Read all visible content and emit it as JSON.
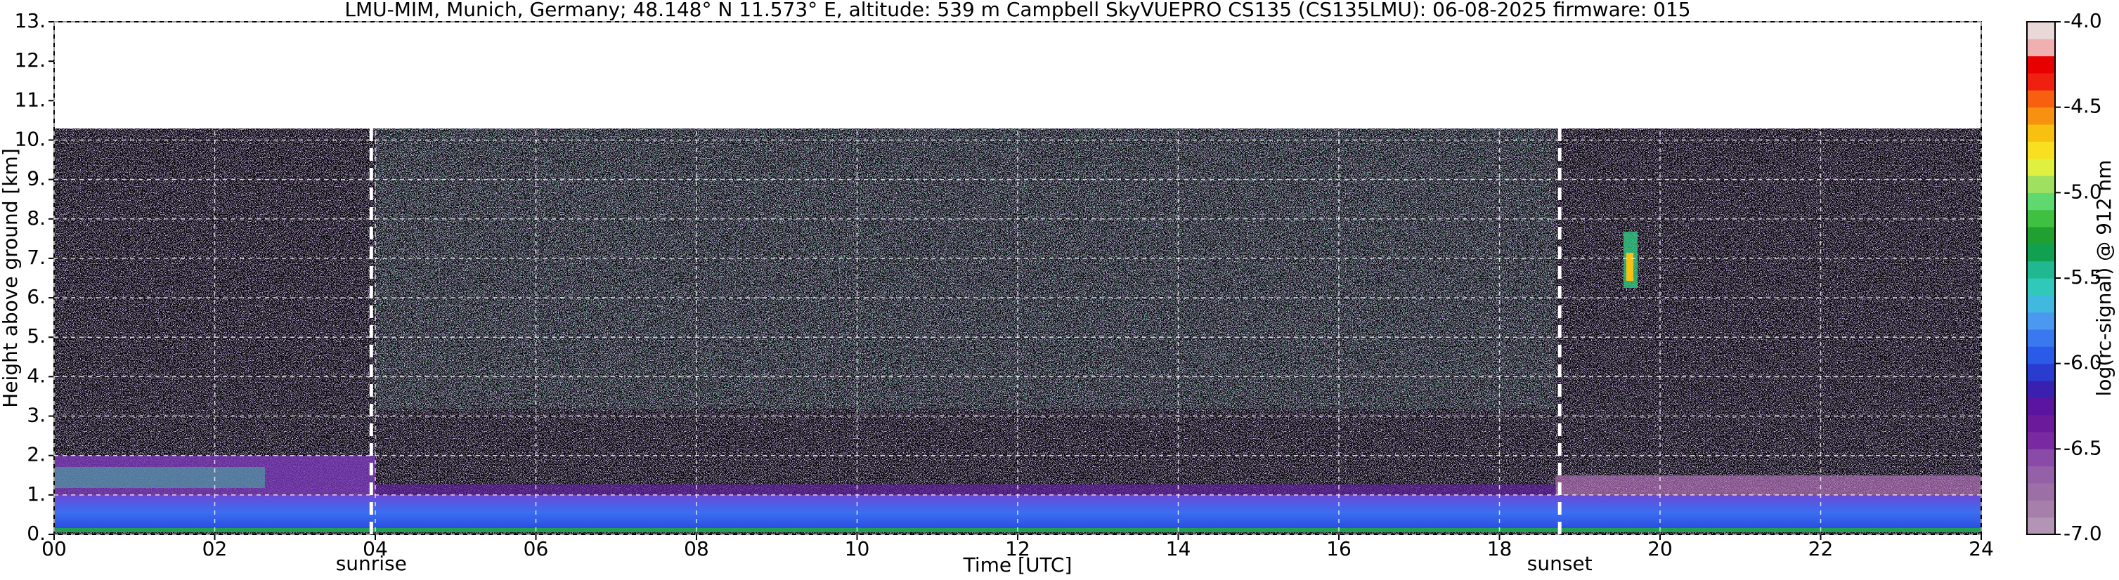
{
  "chart_data": {
    "type": "heatmap",
    "title": "LMU-MIM, Munich, Germany; 48.148° N 11.573° E, altitude: 539 m    Campbell SkyVUEPRO CS135 (CS135LMU): 06-08-2025    firmware: 015",
    "xlabel": "Time [UTC]",
    "ylabel": "Height above ground [km]",
    "xlim": [
      0,
      24
    ],
    "xticks": [
      {
        "value": 0,
        "label": "00"
      },
      {
        "value": 2,
        "label": "02"
      },
      {
        "value": 4,
        "label": "04"
      },
      {
        "value": 6,
        "label": "06"
      },
      {
        "value": 8,
        "label": "08"
      },
      10,
      12,
      14,
      16,
      18,
      20,
      22,
      24
    ],
    "ylim": [
      0,
      13
    ],
    "yticks": [
      {
        "value": 0,
        "label": "0."
      },
      {
        "value": 1,
        "label": "1."
      },
      {
        "value": 2,
        "label": "2."
      },
      {
        "value": 3,
        "label": "3."
      },
      {
        "value": 4,
        "label": "4."
      },
      {
        "value": 5,
        "label": "5."
      },
      {
        "value": 6,
        "label": "6."
      },
      {
        "value": 7,
        "label": "7."
      },
      {
        "value": 8,
        "label": "8."
      },
      {
        "value": 9,
        "label": "9."
      },
      {
        "value": 10,
        "label": "10."
      },
      {
        "value": 11,
        "label": "11."
      },
      {
        "value": 12,
        "label": "12."
      },
      {
        "value": 13,
        "label": "13."
      }
    ],
    "grid": true,
    "annotations": [
      {
        "label": "sunrise",
        "x": 3.95
      },
      {
        "label": "sunset",
        "x": 18.75
      }
    ],
    "colorbar": {
      "label": "log(rc-signal) @ 912 nm",
      "lim": [
        -7,
        -4
      ],
      "ticks": [
        {
          "value": -7,
          "label": "-7.0"
        },
        {
          "value": -6.5,
          "label": "-6.5"
        },
        {
          "value": -6,
          "label": "-6.0"
        },
        {
          "value": -5.5,
          "label": "-5.5"
        },
        {
          "value": -5,
          "label": "-5.0"
        },
        {
          "value": -4.5,
          "label": "-4.5"
        },
        {
          "value": -4,
          "label": "-4.0"
        }
      ],
      "colors": [
        "#b294b4",
        "#a680aa",
        "#9c70a6",
        "#9460a8",
        "#8a4aa8",
        "#7a2aa0",
        "#6a1a9a",
        "#5a14a0",
        "#3a20b0",
        "#2a3cd0",
        "#2a5ae8",
        "#3a78f0",
        "#4a98f0",
        "#40b8e0",
        "#30c8b8",
        "#20b890",
        "#10a050",
        "#20a030",
        "#40c040",
        "#60d870",
        "#a0e060",
        "#e0f040",
        "#f8e020",
        "#f8c010",
        "#f89010",
        "#f86010",
        "#f02010",
        "#e80000",
        "#f0b0b0",
        "#e8d8d8"
      ]
    }
  }
}
